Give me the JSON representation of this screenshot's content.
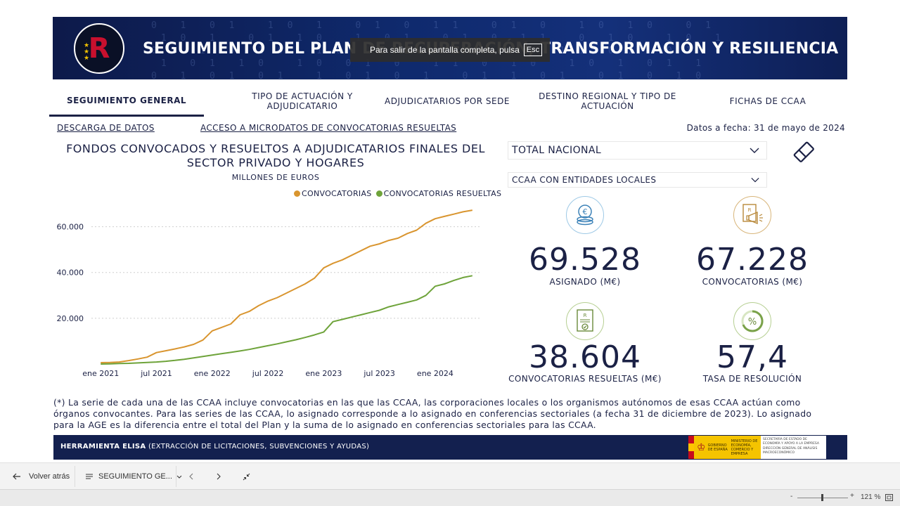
{
  "banner": {
    "title": "SEGUIMIENTO DEL PLAN DE RECUPERACIÓN, TRANSFORMACIÓN Y RESILIENCIA",
    "logo_letter": "R",
    "fullscreen_notice": "Para salir de la pantalla completa, pulsa",
    "fullscreen_key": "Esc"
  },
  "tabs": [
    {
      "label": "SEGUIMIENTO GENERAL",
      "active": true
    },
    {
      "label": "TIPO DE ACTUACIÓN Y ADJUDICATARIO",
      "active": false
    },
    {
      "label": "ADJUDICATARIOS POR SEDE",
      "active": false
    },
    {
      "label": "DESTINO REGIONAL Y TIPO DE ACTUACIÓN",
      "active": false
    },
    {
      "label": "FICHAS DE CCAA",
      "active": false
    }
  ],
  "links": {
    "download": "DESCARGA DE DATOS",
    "microdata": "ACCESO A MICRODATOS DE CONVOCATORIAS RESUELTAS"
  },
  "date_info": "Datos a fecha: 31 de mayo de 2024",
  "filters": {
    "region": "TOTAL NACIONAL",
    "scope": "CCAA CON ENTIDADES LOCALES"
  },
  "kpis": [
    {
      "value": "69.528",
      "label": "ASIGNADO (M€)",
      "icon": "coin-stack-icon"
    },
    {
      "value": "67.228",
      "label": "CONVOCATORIAS (M€)",
      "icon": "megaphone-document-icon"
    },
    {
      "value": "38.604",
      "label": "CONVOCATORIAS RESUELTAS (M€)",
      "icon": "certificate-check-icon"
    },
    {
      "value": "57,4",
      "label": "TASA DE RESOLUCIÓN",
      "icon": "percent-gauge-icon"
    }
  ],
  "chart_data": {
    "type": "line",
    "title": "FONDOS CONVOCADOS Y RESUELTOS A ADJUDICATARIOS FINALES DEL SECTOR PRIVADO Y HOGARES",
    "subtitle": "MILLONES DE EUROS",
    "x_tick_labels": [
      "ene 2021",
      "jul 2021",
      "ene 2022",
      "jul 2022",
      "ene 2023",
      "jul 2023",
      "ene 2024"
    ],
    "y_tick_labels": [
      "20.000",
      "40.000",
      "60.000"
    ],
    "ylim": [
      0,
      70000
    ],
    "xlim": [
      "2020-12",
      "2024-06"
    ],
    "grid": true,
    "legend_position": "top-right",
    "colors": {
      "convocatorias": "#d9952f",
      "resueltas": "#6ea33a"
    },
    "series": [
      {
        "name": "CONVOCATORIAS",
        "x": [
          "2021-01",
          "2021-02",
          "2021-03",
          "2021-04",
          "2021-05",
          "2021-06",
          "2021-07",
          "2021-08",
          "2021-09",
          "2021-10",
          "2021-11",
          "2021-12",
          "2022-01",
          "2022-02",
          "2022-03",
          "2022-04",
          "2022-05",
          "2022-06",
          "2022-07",
          "2022-08",
          "2022-09",
          "2022-10",
          "2022-11",
          "2022-12",
          "2023-01",
          "2023-02",
          "2023-03",
          "2023-04",
          "2023-05",
          "2023-06",
          "2023-07",
          "2023-08",
          "2023-09",
          "2023-10",
          "2023-11",
          "2023-12",
          "2024-01",
          "2024-02",
          "2024-03",
          "2024-04",
          "2024-05"
        ],
        "values": [
          600,
          700,
          900,
          1500,
          2200,
          3000,
          5000,
          5800,
          6600,
          7500,
          8600,
          10500,
          14500,
          16000,
          17500,
          21500,
          23000,
          25500,
          27500,
          29000,
          31000,
          33000,
          35000,
          37500,
          42000,
          44000,
          45500,
          47500,
          49500,
          51500,
          52500,
          54000,
          55000,
          57000,
          58500,
          61500,
          63500,
          64500,
          65500,
          66500,
          67200
        ]
      },
      {
        "name": "CONVOCATORIAS RESUELTAS",
        "x": [
          "2021-01",
          "2021-02",
          "2021-03",
          "2021-04",
          "2021-05",
          "2021-06",
          "2021-07",
          "2021-08",
          "2021-09",
          "2021-10",
          "2021-11",
          "2021-12",
          "2022-01",
          "2022-02",
          "2022-03",
          "2022-04",
          "2022-05",
          "2022-06",
          "2022-07",
          "2022-08",
          "2022-09",
          "2022-10",
          "2022-11",
          "2022-12",
          "2023-01",
          "2023-02",
          "2023-03",
          "2023-04",
          "2023-05",
          "2023-06",
          "2023-07",
          "2023-08",
          "2023-09",
          "2023-10",
          "2023-11",
          "2023-12",
          "2024-01",
          "2024-02",
          "2024-03",
          "2024-04",
          "2024-05"
        ],
        "values": [
          0,
          100,
          200,
          300,
          500,
          700,
          900,
          1200,
          1600,
          2100,
          2700,
          3300,
          3900,
          4500,
          5100,
          5700,
          6400,
          7200,
          8000,
          8800,
          9700,
          10600,
          11600,
          12700,
          14000,
          18500,
          19500,
          20500,
          21500,
          22500,
          23500,
          25000,
          26000,
          27000,
          28000,
          30000,
          34000,
          35000,
          36500,
          37800,
          38600
        ]
      }
    ]
  },
  "footnote": "(*) La serie de cada una de las CCAA incluye convocatorias en las que las CCAA, las corporaciones locales o los organismos autónomos de esas CCAA actúan como órganos convocantes. Para las series de las CCAA, lo asignado corresponde a lo asignado en conferencias sectoriales (a fecha 31 de diciembre de 2023). Lo asignado para la AGE es la diferencia entre el total del Plan y la suma de lo asignado en conferencias sectoriales para las CCAA.",
  "footer": {
    "tool_name": "HERRAMIENTA ELISA",
    "tool_desc": "(EXTRACCIÓN DE LICITACIONES, SUBVENCIONES Y AYUDAS)",
    "gov_label": "GOBIERNO DE ESPAÑA",
    "ministry_label": "MINISTERIO DE ECONOMÍA, COMERCIO Y EMPRESA",
    "secretaria_label": "SECRETARÍA DE ESTADO DE ECONOMÍA Y APOYO A LA EMPRESA",
    "direccion_label": "DIRECCIÓN GENERAL DE ANÁLISIS MACROECONÓMICO"
  },
  "bottom_bar": {
    "back_label": "Volver atrás",
    "page_selector": "SEGUIMIENTO GE...",
    "zoom": "121 %"
  }
}
